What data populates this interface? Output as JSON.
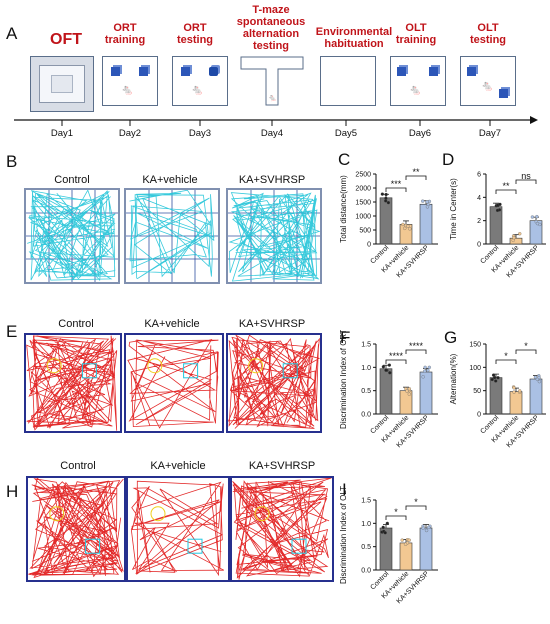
{
  "panel_a": {
    "letter": "A",
    "steps": [
      {
        "title": "OFT",
        "day": "Day1"
      },
      {
        "title": "ORT training",
        "day": "Day2"
      },
      {
        "title": "ORT testing",
        "day": "Day3"
      },
      {
        "title": "T-maze spontaneous alternation testing",
        "day": "Day4"
      },
      {
        "title": "Environmental habituation",
        "day": "Day5"
      },
      {
        "title": "OLT training",
        "day": "Day6"
      },
      {
        "title": "OLT testing",
        "day": "Day7"
      }
    ]
  },
  "track_rows": [
    {
      "letter": "B",
      "labels": [
        "Control",
        "KA+vehicle",
        "KA+SVHRSP"
      ],
      "color": "#22c4d8"
    },
    {
      "letter": "E",
      "labels": [
        "Control",
        "KA+vehicle",
        "KA+SVHRSP"
      ],
      "color": "#e01414"
    },
    {
      "letter": "H",
      "labels": [
        "Control",
        "KA+vehicle",
        "KA+SVHRSP"
      ],
      "color": "#e01414"
    }
  ],
  "colors": {
    "control": "#7a7a7a",
    "vehicle": "#f2c892",
    "svhrsp": "#aac0e4"
  },
  "chart_data": [
    {
      "id": "C",
      "type": "bar",
      "ylabel": "Total distance(mm)",
      "categories": [
        "Control",
        "KA+vehicle",
        "KA+SVHRSP"
      ],
      "values": [
        1650,
        700,
        1420
      ],
      "ylim": [
        0,
        2500
      ],
      "yticks": [
        "0",
        "500",
        "1000",
        "1500",
        "2000",
        "2500"
      ],
      "significance": [
        "***",
        "**"
      ]
    },
    {
      "id": "D",
      "type": "bar",
      "ylabel": "Time in Center(s)",
      "categories": [
        "Control",
        "KA+vehicle",
        "KA+SVHRSP"
      ],
      "values": [
        3.2,
        0.5,
        2.0
      ],
      "ylim": [
        0,
        6
      ],
      "yticks": [
        "0",
        "2",
        "4",
        "6"
      ],
      "significance": [
        "**",
        "ns"
      ]
    },
    {
      "id": "F",
      "type": "bar",
      "ylabel": "Discrimination Index of ORT",
      "categories": [
        "Control",
        "KA+vehicle",
        "KA+SVHRSP"
      ],
      "values": [
        0.97,
        0.5,
        0.9
      ],
      "ylim": [
        0,
        1.5
      ],
      "yticks": [
        "0.0",
        "0.5",
        "1.0",
        "1.5"
      ],
      "significance": [
        "****",
        "****"
      ]
    },
    {
      "id": "G",
      "type": "bar",
      "ylabel": "Alternation(%)",
      "categories": [
        "Control",
        "KA+vehicle",
        "KA+SVHRSP"
      ],
      "values": [
        78,
        48,
        75
      ],
      "ylim": [
        0,
        150
      ],
      "yticks": [
        "0",
        "50",
        "100",
        "150"
      ],
      "significance": [
        "*",
        "*"
      ]
    },
    {
      "id": "I",
      "type": "bar",
      "ylabel": "Discrimination Index of OLT",
      "categories": [
        "Control",
        "KA+vehicle",
        "KA+SVHRSP"
      ],
      "values": [
        0.9,
        0.58,
        0.9
      ],
      "ylim": [
        0,
        1.5
      ],
      "yticks": [
        "0.0",
        "0.5",
        "1.0",
        "1.5"
      ],
      "significance": [
        "*",
        "*"
      ]
    }
  ]
}
